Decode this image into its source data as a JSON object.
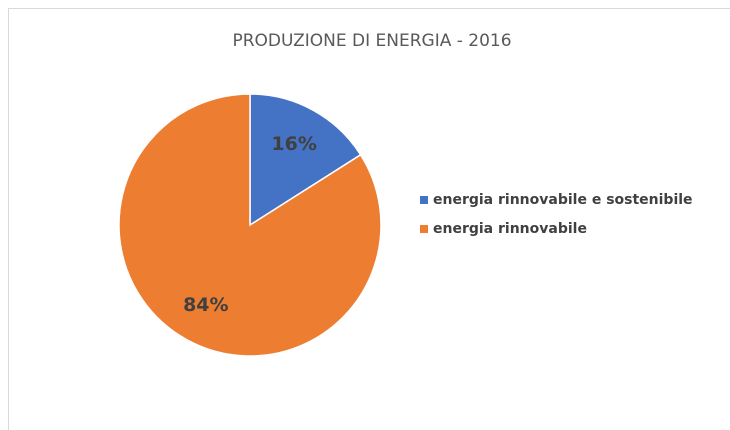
{
  "chart_data": {
    "type": "pie",
    "title": "PRODUZIONE DI ENERGIA - 2016",
    "categories": [
      "energia rinnovabile e sostenibile",
      "energia rinnovabile"
    ],
    "values": [
      16,
      84
    ],
    "value_labels": [
      "16%",
      "84%"
    ],
    "colors": [
      "#4472c4",
      "#ed7d31"
    ],
    "legend": "right"
  }
}
